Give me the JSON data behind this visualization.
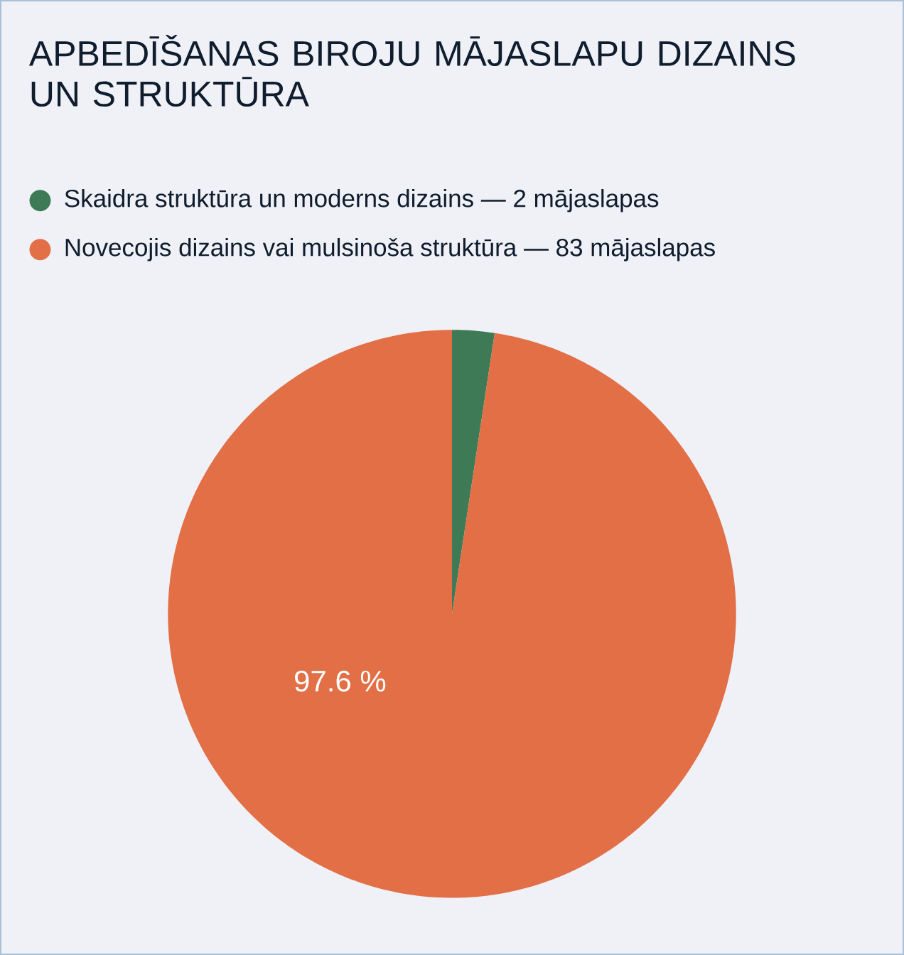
{
  "chart_data": {
    "type": "pie",
    "title": "APBEDĪŠANAS BIROJU MĀJASLAPU DIZAINS UN STRUKTŪRA",
    "categories": [
      "Skaidra struktūra un moderns dizains — 2 mājaslapas",
      "Novecojis dizains vai mulsinoša struktūra — 83 mājaslapas"
    ],
    "values": [
      2.4,
      97.6
    ],
    "colors": [
      "#3d7a55",
      "#e26f46"
    ],
    "value_labels": [
      null,
      "97.6 %"
    ],
    "legend": "top left"
  }
}
